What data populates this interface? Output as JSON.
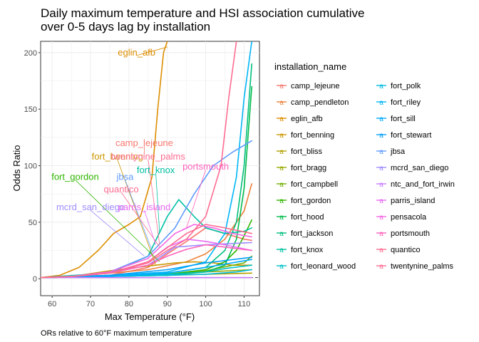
{
  "chart_data": {
    "type": "line",
    "title": "Daily maximum temperature and HSI association cumulative over 0-5 days lag by installation",
    "title_lines": [
      "Daily maximum temperature and HSI association cumulative",
      "over 0-5 days lag by installation"
    ],
    "xlabel": "Max Temperature (°F)",
    "ylabel": "Odds Ratio",
    "caption": "ORs relative to 60°F maximum temperature",
    "xlim": [
      57,
      114
    ],
    "ylim": [
      -15,
      210
    ],
    "xticks": [
      60,
      70,
      80,
      90,
      100,
      110
    ],
    "yticks": [
      0,
      50,
      100,
      150,
      200
    ],
    "grid": true,
    "reference_line": 1,
    "legend_position": "right",
    "legend_title": "installation_name",
    "legend_key_glyph": "a",
    "series": [
      {
        "name": "camp_lejeune",
        "color": "#F8766D",
        "x": [
          57,
          65,
          75,
          85,
          90,
          95,
          100,
          105,
          110,
          112
        ],
        "y": [
          1,
          1.5,
          3,
          10,
          22,
          33,
          45,
          40,
          35,
          34
        ]
      },
      {
        "name": "camp_pendleton",
        "color": "#EC823C",
        "x": [
          57,
          65,
          75,
          85,
          95,
          100,
          105,
          110,
          112
        ],
        "y": [
          1,
          2,
          5,
          8,
          15,
          22,
          35,
          60,
          84
        ]
      },
      {
        "name": "eglin_afb",
        "color": "#DD8D00",
        "x": [
          57,
          62,
          67,
          72,
          76,
          80,
          83,
          86,
          87.5,
          89,
          90
        ],
        "y": [
          1,
          3,
          10,
          25,
          40,
          48,
          55,
          90,
          150,
          200,
          210
        ]
      },
      {
        "name": "fort_benning",
        "color": "#CA9700",
        "x": [
          57,
          67,
          77,
          87,
          92,
          97,
          102,
          107,
          112
        ],
        "y": [
          1,
          3,
          8,
          12,
          14,
          15,
          14,
          12,
          12
        ]
      },
      {
        "name": "fort_bliss",
        "color": "#B3A000",
        "x": [
          57,
          75,
          90,
          100,
          112
        ],
        "y": [
          1,
          2,
          3,
          4,
          5
        ]
      },
      {
        "name": "fort_bragg",
        "color": "#97A900",
        "x": [
          57,
          75,
          90,
          100,
          112
        ],
        "y": [
          1,
          2,
          4,
          6,
          8
        ]
      },
      {
        "name": "fort_campbell",
        "color": "#71B000",
        "x": [
          57,
          75,
          90,
          100,
          110,
          112
        ],
        "y": [
          1,
          2,
          4,
          7,
          14,
          20
        ]
      },
      {
        "name": "fort_gordon",
        "color": "#2FB600",
        "x": [
          57,
          75,
          90,
          100,
          105,
          108,
          110,
          112
        ],
        "y": [
          1,
          2,
          4,
          8,
          15,
          25,
          38,
          52
        ]
      },
      {
        "name": "fort_hood",
        "color": "#00BB4B",
        "x": [
          57,
          75,
          90,
          100,
          105,
          108,
          110,
          112
        ],
        "y": [
          1,
          2,
          3,
          6,
          12,
          35,
          80,
          170
        ]
      },
      {
        "name": "fort_jackson",
        "color": "#00BF7D",
        "x": [
          57,
          75,
          90,
          100,
          105,
          108,
          110,
          112
        ],
        "y": [
          1,
          2,
          5,
          10,
          25,
          50,
          100,
          190
        ]
      },
      {
        "name": "fort_knox",
        "color": "#00C1A3",
        "x": [
          57,
          75,
          85,
          90,
          93,
          97,
          100,
          105,
          110,
          112
        ],
        "y": [
          1,
          5,
          20,
          55,
          70,
          55,
          45,
          40,
          42,
          45
        ]
      },
      {
        "name": "fort_leonard_wood",
        "color": "#00C0C5",
        "x": [
          57,
          75,
          90,
          100,
          105,
          112
        ],
        "y": [
          1,
          2,
          4,
          6,
          9,
          12
        ]
      },
      {
        "name": "fort_polk",
        "color": "#00BCE1",
        "x": [
          57,
          75,
          90,
          100,
          108,
          112
        ],
        "y": [
          1,
          2,
          3,
          4,
          6,
          8
        ]
      },
      {
        "name": "fort_riley",
        "color": "#00B5F7",
        "x": [
          57,
          75,
          90,
          100,
          105,
          108,
          110,
          112
        ],
        "y": [
          1,
          3,
          6,
          15,
          40,
          90,
          160,
          210
        ]
      },
      {
        "name": "fort_sill",
        "color": "#00ABFD",
        "x": [
          57,
          75,
          90,
          100,
          112
        ],
        "y": [
          1,
          2,
          5,
          10,
          17
        ]
      },
      {
        "name": "fort_stewart",
        "color": "#009EFA",
        "x": [
          57,
          75,
          90,
          100,
          112
        ],
        "y": [
          1,
          3,
          8,
          14,
          19
        ]
      },
      {
        "name": "jbsa",
        "color": "#619CFF",
        "x": [
          57,
          65,
          75,
          85,
          92,
          97,
          102,
          107,
          112
        ],
        "y": [
          1,
          2,
          6,
          20,
          45,
          75,
          100,
          112,
          122
        ]
      },
      {
        "name": "mcrd_san_diego",
        "color": "#9F8CFF",
        "x": [
          57,
          65,
          75,
          85,
          92,
          100,
          112
        ],
        "y": [
          1,
          2,
          5,
          12,
          28,
          30,
          32
        ]
      },
      {
        "name": "ntc_and_fort_irwin",
        "color": "#C77CFF",
        "x": [
          57,
          75,
          90,
          100,
          112
        ],
        "y": [
          1,
          1,
          1,
          1,
          1
        ]
      },
      {
        "name": "parris_island",
        "color": "#E76BF3",
        "x": [
          57,
          65,
          75,
          85,
          90,
          95,
          100,
          105,
          112
        ],
        "y": [
          1,
          2,
          5,
          15,
          28,
          35,
          33,
          30,
          25
        ]
      },
      {
        "name": "pensacola",
        "color": "#F564E3",
        "x": [
          57,
          65,
          75,
          85,
          92,
          97,
          102,
          107,
          112
        ],
        "y": [
          1,
          2,
          6,
          18,
          40,
          48,
          45,
          40,
          37
        ]
      },
      {
        "name": "portsmouth",
        "color": "#FF62BC",
        "x": [
          57,
          65,
          75,
          85,
          90,
          95,
          100,
          105,
          112
        ],
        "y": [
          1,
          2,
          5,
          12,
          20,
          26,
          30,
          28,
          25
        ]
      },
      {
        "name": "quantico",
        "color": "#FF6C91",
        "x": [
          57,
          65,
          75,
          85,
          90,
          95,
          100,
          104,
          106,
          108
        ],
        "y": [
          1,
          2,
          5,
          14,
          25,
          35,
          55,
          100,
          160,
          210
        ]
      },
      {
        "name": "twentynine_palms",
        "color": "#FF6C91",
        "x": [
          57,
          65,
          75,
          85,
          95,
          100,
          105,
          112
        ],
        "y": [
          1,
          2,
          5,
          15,
          40,
          48,
          45,
          40
        ]
      }
    ],
    "annotations": [
      {
        "text": "eglin_afb",
        "color": "#DD8D00",
        "x": 82,
        "y": 200,
        "tx": 90,
        "ty": 205
      },
      {
        "text": "camp_lejeune",
        "color": "#F8766D",
        "x": 84,
        "y": 120,
        "tx": 84,
        "ty": 110
      },
      {
        "text": "fort_benning",
        "color": "#CA9700",
        "x": 77,
        "y": 108,
        "tx": 87,
        "ty": 12
      },
      {
        "text": "twentynine_palms",
        "color": "#FF6C91",
        "x": 85,
        "y": 108,
        "tx": 88,
        "ty": 30
      },
      {
        "text": "fort_knox",
        "color": "#00C1A3",
        "x": 87,
        "y": 96,
        "tx": 88,
        "ty": 40
      },
      {
        "text": "portsmouth",
        "color": "#FF62BC",
        "x": 100,
        "y": 99,
        "tx": 95,
        "ty": 45
      },
      {
        "text": "fort_gordon",
        "color": "#2FB600",
        "x": 66,
        "y": 90,
        "tx": 88,
        "ty": 15
      },
      {
        "text": "jbsa",
        "color": "#619CFF",
        "x": 79,
        "y": 90,
        "tx": 86,
        "ty": 25
      },
      {
        "text": "quantico",
        "color": "#FF6C91",
        "x": 78,
        "y": 79,
        "tx": 88,
        "ty": 28
      },
      {
        "text": "mcrd_san_diego",
        "color": "#9F8CFF",
        "x": 70,
        "y": 63,
        "tx": 84,
        "ty": 20
      },
      {
        "text": "parris_island",
        "color": "#E76BF3",
        "x": 84,
        "y": 63,
        "tx": 87,
        "ty": 30
      }
    ]
  }
}
